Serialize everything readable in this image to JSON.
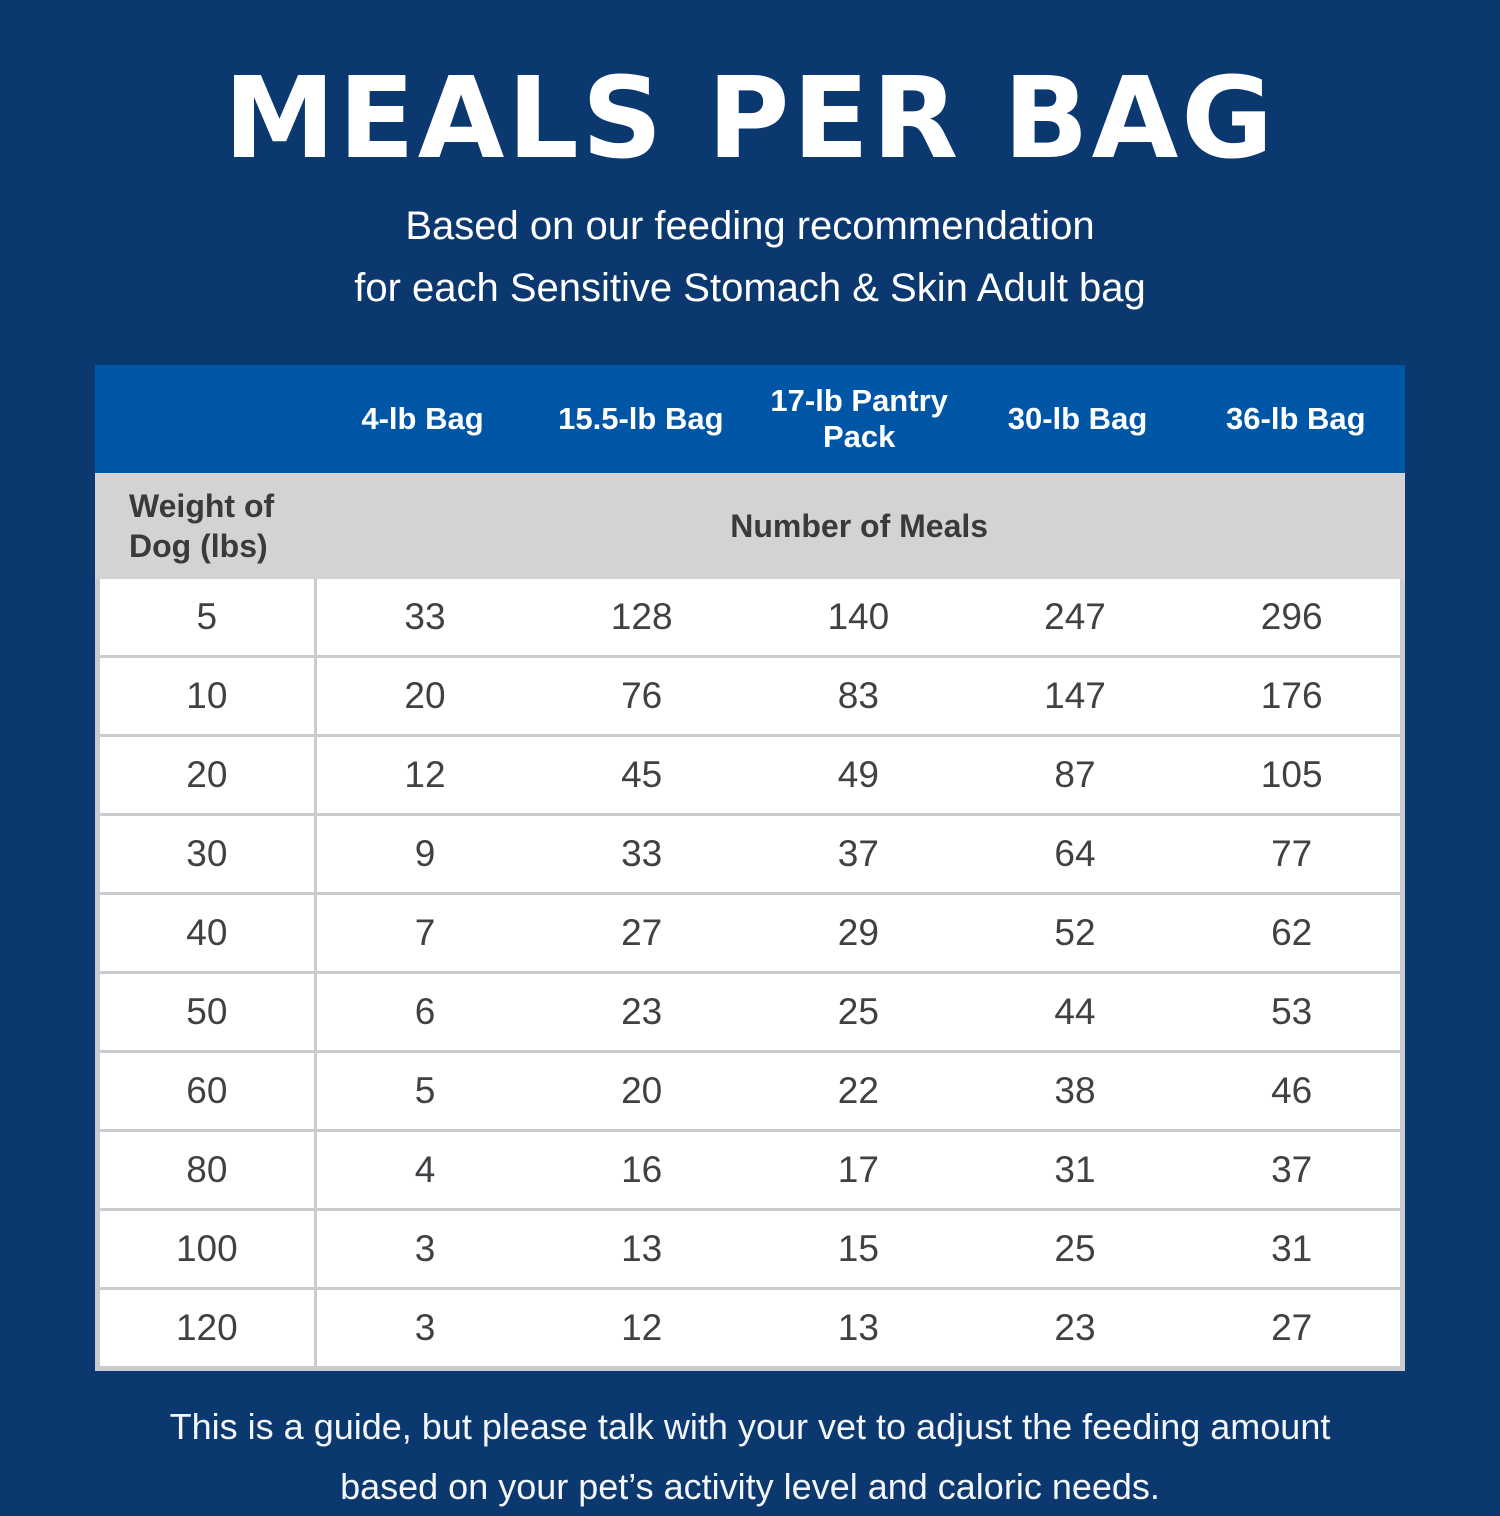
{
  "title": "MEALS PER BAG",
  "subtitle_line1": "Based on our feeding recommendation",
  "subtitle_line2": "for each Sensitive Stomach & Skin Adult bag",
  "table": {
    "bag_headers": [
      "4-lb Bag",
      "15.5-lb Bag",
      "17-lb Pantry Pack",
      "30-lb Bag",
      "36-lb Bag"
    ],
    "row_header": "Weight of Dog (lbs)",
    "meals_header": "Number of Meals",
    "rows": [
      {
        "weight": "5",
        "meals": [
          "33",
          "128",
          "140",
          "247",
          "296"
        ]
      },
      {
        "weight": "10",
        "meals": [
          "20",
          "76",
          "83",
          "147",
          "176"
        ]
      },
      {
        "weight": "20",
        "meals": [
          "12",
          "45",
          "49",
          "87",
          "105"
        ]
      },
      {
        "weight": "30",
        "meals": [
          "9",
          "33",
          "37",
          "64",
          "77"
        ]
      },
      {
        "weight": "40",
        "meals": [
          "7",
          "27",
          "29",
          "52",
          "62"
        ]
      },
      {
        "weight": "50",
        "meals": [
          "6",
          "23",
          "25",
          "44",
          "53"
        ]
      },
      {
        "weight": "60",
        "meals": [
          "5",
          "20",
          "22",
          "38",
          "46"
        ]
      },
      {
        "weight": "80",
        "meals": [
          "4",
          "16",
          "17",
          "31",
          "37"
        ]
      },
      {
        "weight": "100",
        "meals": [
          "3",
          "13",
          "15",
          "25",
          "31"
        ]
      },
      {
        "weight": "120",
        "meals": [
          "3",
          "12",
          "13",
          "23",
          "27"
        ]
      }
    ]
  },
  "footer_line1": "This is a guide, but please talk with your vet to adjust the feeding amount",
  "footer_line2": "based on your pet’s activity level and caloric needs.",
  "colors": {
    "page_background": "#0b386e",
    "header_band": "#0056a6",
    "sub_header_band": "#d3d3d5",
    "row_border": "#cacbce",
    "number_text": "#414145",
    "header_text": "#ffffff",
    "sub_header_text": "#3a3a3c"
  },
  "chart_data": {
    "type": "table",
    "title": "MEALS PER BAG",
    "subtitle": "Based on our feeding recommendation for each Sensitive Stomach & Skin Adult bag",
    "value_unit": "Number of Meals",
    "columns": [
      "Weight of Dog (lbs)",
      "4-lb Bag",
      "15.5-lb Bag",
      "17-lb Pantry Pack",
      "30-lb Bag",
      "36-lb Bag"
    ],
    "rows": [
      [
        5,
        33,
        128,
        140,
        247,
        296
      ],
      [
        10,
        20,
        76,
        83,
        147,
        176
      ],
      [
        20,
        12,
        45,
        49,
        87,
        105
      ],
      [
        30,
        9,
        33,
        37,
        64,
        77
      ],
      [
        40,
        7,
        27,
        29,
        52,
        62
      ],
      [
        50,
        6,
        23,
        25,
        44,
        53
      ],
      [
        60,
        5,
        20,
        22,
        38,
        46
      ],
      [
        80,
        4,
        16,
        17,
        31,
        37
      ],
      [
        100,
        3,
        13,
        15,
        25,
        31
      ],
      [
        120,
        3,
        12,
        13,
        23,
        27
      ]
    ]
  }
}
